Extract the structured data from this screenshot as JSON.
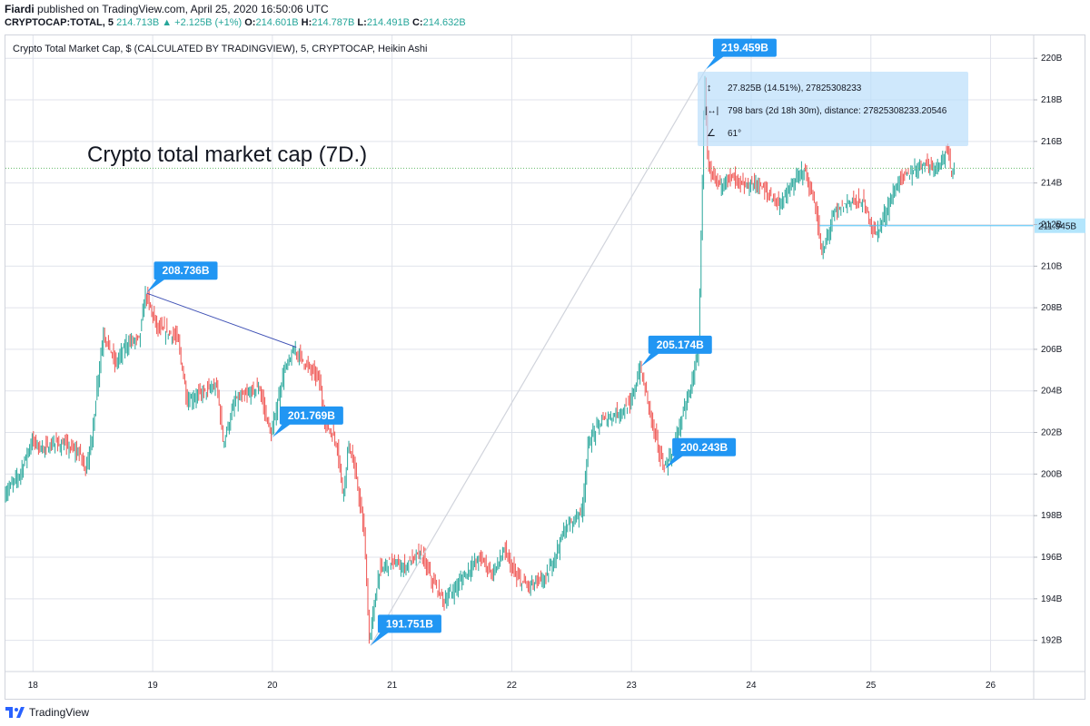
{
  "header": {
    "author": "Fiardi",
    "published_text": "published on TradingView.com, April 25, 2020 16:50:06 UTC",
    "symbol": "CRYPTOCAP:TOTAL, 5",
    "last_price": "214.713B",
    "change": "▲ +2.125B (+1%)",
    "open_label": "O:",
    "open": "214.601B",
    "high_label": "H:",
    "high": "214.787B",
    "low_label": "L:",
    "low": "214.491B",
    "close_label": "C:",
    "close": "214.632B"
  },
  "chart_title": "Crypto Total Market Cap, $ (CALCULATED BY TRADINGVIEW), 5, CRYPTOCAP, Heikin Ashi",
  "annotation_text": "Crypto total market cap (7D.)",
  "measure_tooltip": {
    "line1": "27.825B (14.51%), 27825308233",
    "line2": "798 bars (2d 18h 30m), distance: 27825308233.20546",
    "line3": "61°"
  },
  "footer": {
    "brand": "TradingView"
  },
  "colors": {
    "up": "#26a69a",
    "down": "#ef5350",
    "label_bg": "#2196f3",
    "trendline": "#3f51b5",
    "price_line": "#66bb6a",
    "hline": "#4fc3f7"
  },
  "chart_data": {
    "type": "candlestick",
    "title": "Crypto Total Market Cap, $ (CALCULATED BY TRADINGVIEW), 5, CRYPTOCAP, Heikin Ashi",
    "x_unit": "day (April 2020)",
    "x_ticks": [
      "18",
      "19",
      "20",
      "21",
      "22",
      "23",
      "24",
      "25",
      "26"
    ],
    "y_ticks": [
      "192B",
      "194B",
      "196B",
      "198B",
      "200B",
      "202B",
      "204B",
      "206B",
      "208B",
      "210B",
      "212B",
      "214B",
      "216B",
      "218B",
      "220B"
    ],
    "xlim": [
      17.77,
      26.36
    ],
    "ylim": [
      190.5,
      221.1
    ],
    "grid": true,
    "series_path": [
      [
        17.77,
        199.0
      ],
      [
        17.9,
        200.0
      ],
      [
        18.0,
        201.6
      ],
      [
        18.1,
        201.2
      ],
      [
        18.2,
        201.5
      ],
      [
        18.3,
        201.3
      ],
      [
        18.4,
        201.0
      ],
      [
        18.45,
        200.3
      ],
      [
        18.5,
        201.5
      ],
      [
        18.55,
        204.5
      ],
      [
        18.6,
        206.8
      ],
      [
        18.7,
        205.3
      ],
      [
        18.8,
        206.3
      ],
      [
        18.9,
        206.5
      ],
      [
        18.95,
        208.7
      ],
      [
        19.05,
        207.0
      ],
      [
        19.15,
        206.8
      ],
      [
        19.22,
        206.5
      ],
      [
        19.3,
        203.5
      ],
      [
        19.45,
        204.0
      ],
      [
        19.55,
        204.2
      ],
      [
        19.6,
        201.5
      ],
      [
        19.7,
        203.5
      ],
      [
        19.8,
        203.8
      ],
      [
        19.9,
        204.2
      ],
      [
        20.0,
        201.8
      ],
      [
        20.1,
        204.8
      ],
      [
        20.2,
        206.0
      ],
      [
        20.3,
        205.2
      ],
      [
        20.4,
        204.6
      ],
      [
        20.45,
        202.5
      ],
      [
        20.55,
        201.5
      ],
      [
        20.6,
        199.0
      ],
      [
        20.65,
        201.5
      ],
      [
        20.72,
        199.5
      ],
      [
        20.78,
        197.0
      ],
      [
        20.82,
        191.9
      ],
      [
        20.9,
        195.3
      ],
      [
        21.0,
        195.8
      ],
      [
        21.1,
        195.5
      ],
      [
        21.25,
        196.2
      ],
      [
        21.35,
        194.8
      ],
      [
        21.45,
        193.9
      ],
      [
        21.55,
        194.6
      ],
      [
        21.65,
        195.4
      ],
      [
        21.75,
        196.0
      ],
      [
        21.85,
        195.2
      ],
      [
        21.95,
        196.3
      ],
      [
        22.05,
        195.0
      ],
      [
        22.15,
        194.6
      ],
      [
        22.3,
        195.0
      ],
      [
        22.45,
        197.3
      ],
      [
        22.6,
        198.3
      ],
      [
        22.65,
        201.5
      ],
      [
        22.75,
        202.5
      ],
      [
        22.85,
        202.8
      ],
      [
        23.0,
        203.3
      ],
      [
        23.08,
        205.1
      ],
      [
        23.15,
        203.5
      ],
      [
        23.2,
        202.0
      ],
      [
        23.28,
        200.3
      ],
      [
        23.35,
        201.0
      ],
      [
        23.42,
        202.5
      ],
      [
        23.5,
        204.0
      ],
      [
        23.57,
        206.0
      ],
      [
        23.6,
        213.5
      ],
      [
        23.62,
        219.4
      ],
      [
        23.65,
        214.5
      ],
      [
        23.75,
        214.0
      ],
      [
        23.85,
        214.3
      ],
      [
        23.95,
        213.8
      ],
      [
        24.05,
        214.0
      ],
      [
        24.15,
        213.5
      ],
      [
        24.25,
        213.0
      ],
      [
        24.35,
        213.8
      ],
      [
        24.45,
        214.7
      ],
      [
        24.55,
        212.8
      ],
      [
        24.6,
        210.5
      ],
      [
        24.7,
        212.5
      ],
      [
        24.85,
        213.2
      ],
      [
        24.95,
        213.0
      ],
      [
        25.05,
        211.5
      ],
      [
        25.15,
        212.8
      ],
      [
        25.25,
        214.2
      ],
      [
        25.35,
        214.5
      ],
      [
        25.45,
        215.0
      ],
      [
        25.55,
        214.8
      ],
      [
        25.65,
        215.5
      ],
      [
        25.68,
        214.6
      ],
      [
        25.7,
        214.7
      ]
    ],
    "last_value_label": "211.945B",
    "price_labels": [
      {
        "value": 208.736,
        "x": 18.95,
        "text": "208.736B"
      },
      {
        "value": 201.769,
        "x": 20.0,
        "text": "201.769B"
      },
      {
        "value": 191.751,
        "x": 20.82,
        "text": "191.751B"
      },
      {
        "value": 205.174,
        "x": 23.08,
        "text": "205.174B"
      },
      {
        "value": 200.243,
        "x": 23.28,
        "text": "200.243B"
      },
      {
        "value": 219.459,
        "x": 23.62,
        "text": "219.459B"
      }
    ],
    "trendline": {
      "from": [
        18.95,
        208.7
      ],
      "to": [
        20.2,
        206.1
      ]
    },
    "measure_line": {
      "from": [
        20.82,
        191.75
      ],
      "to": [
        23.62,
        219.46
      ]
    },
    "horizontal_line": 211.945,
    "current_price": 214.713
  }
}
